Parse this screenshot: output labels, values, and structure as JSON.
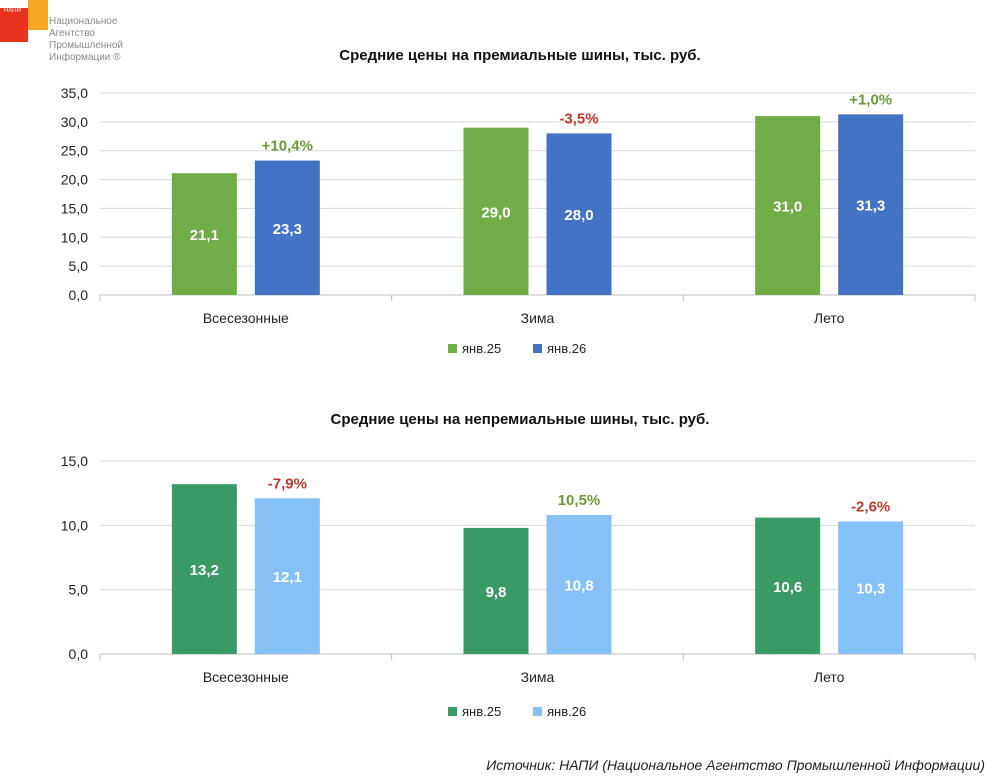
{
  "logo": {
    "abbr": "НАПИ",
    "lines": [
      "Национальное",
      "Агентство",
      "Промышленной",
      "Информации ®"
    ]
  },
  "source": "Источник: НАПИ (Национальное Агентство Промышленной Информации)",
  "chart_data": [
    {
      "type": "bar",
      "title": "Средние цены на премиальные шины, тыс. руб.",
      "categories": [
        "Всесезонные",
        "Зима",
        "Лето"
      ],
      "series": [
        {
          "name": "янв.25",
          "values": [
            21.1,
            29.0,
            31.0
          ],
          "labels": [
            "21,1",
            "29,0",
            "31,0"
          ],
          "color": "#70AD47"
        },
        {
          "name": "янв.26",
          "values": [
            23.3,
            28.0,
            31.3
          ],
          "labels": [
            "23,3",
            "28,0",
            "31,3"
          ],
          "color": "#4472C4"
        }
      ],
      "changes": [
        "+10,4%",
        "-3,5%",
        "+1,0%"
      ],
      "change_colors": [
        "#6B9A3A",
        "#C0392B",
        "#6B9A3A"
      ],
      "ylim": [
        0,
        35
      ],
      "yticks": [
        0,
        5,
        10,
        15,
        20,
        25,
        30,
        35
      ],
      "ytick_labels": [
        "0,0",
        "5,0",
        "10,0",
        "15,0",
        "20,0",
        "25,0",
        "30,0",
        "35,0"
      ],
      "grid": true,
      "legend": "bottom"
    },
    {
      "type": "bar",
      "title": "Средние цены на непремиальные шины,  тыс. руб.",
      "categories": [
        "Всесезонные",
        "Зима",
        "Лето"
      ],
      "series": [
        {
          "name": "янв.25",
          "values": [
            13.2,
            9.8,
            10.6
          ],
          "labels": [
            "13,2",
            "9,8",
            "10,6"
          ],
          "color": "#3A9A66"
        },
        {
          "name": "янв.26",
          "values": [
            12.1,
            10.8,
            10.3
          ],
          "labels": [
            "12,1",
            "10,8",
            "10,3"
          ],
          "color": "#85C1F7"
        }
      ],
      "changes": [
        "-7,9%",
        "10,5%",
        "-2,6%"
      ],
      "change_colors": [
        "#C0392B",
        "#6B9A3A",
        "#C0392B"
      ],
      "ylim": [
        0,
        15
      ],
      "yticks": [
        0,
        5,
        10,
        15
      ],
      "ytick_labels": [
        "0,0",
        "5,0",
        "10,0",
        "15,0"
      ],
      "grid": true,
      "legend": "bottom"
    }
  ]
}
